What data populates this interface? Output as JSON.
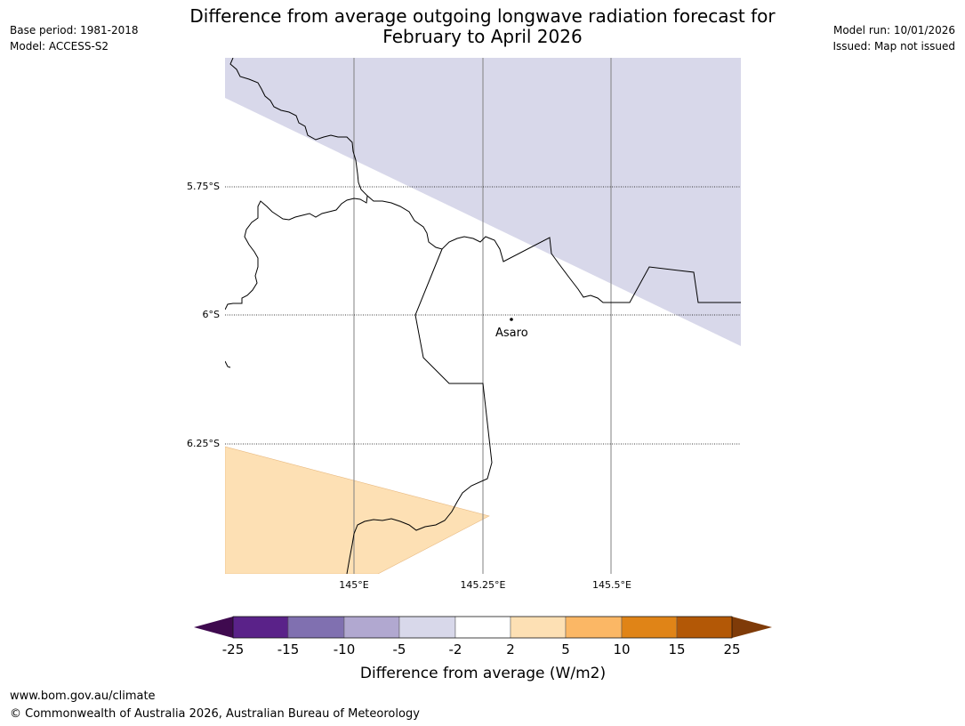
{
  "header": {
    "title_line1": "Difference from average outgoing longwave radiation forecast for",
    "title_line2": "February to April 2026",
    "base_period": "Base period: 1981-2018",
    "model": "Model: ACCESS-S2",
    "model_run": "Model run: 10/01/2026",
    "issued": "Issued: Map not issued"
  },
  "map": {
    "lat_labels": [
      "5.75°S",
      "6°S",
      "6.25°S"
    ],
    "lon_labels": [
      "145°E",
      "145.25°E",
      "145.5°E"
    ],
    "town": "Asaro"
  },
  "colorbar": {
    "title": "Difference from average (W/m2)",
    "ticks": [
      "-25",
      "-15",
      "-10",
      "-5",
      "-2",
      "2",
      "5",
      "10",
      "15",
      "25"
    ],
    "colors": [
      "#3f0a4f",
      "#5a2289",
      "#8070b0",
      "#b1a8d0",
      "#d8d8ea",
      "#ffffff",
      "#fde0b4",
      "#fbb765",
      "#e08417",
      "#b35806",
      "#7f3b08"
    ]
  },
  "footer": {
    "url": "www.bom.gov.au/climate",
    "copyright": "© Commonwealth of Australia 2026, Australian Bureau of Meteorology"
  }
}
